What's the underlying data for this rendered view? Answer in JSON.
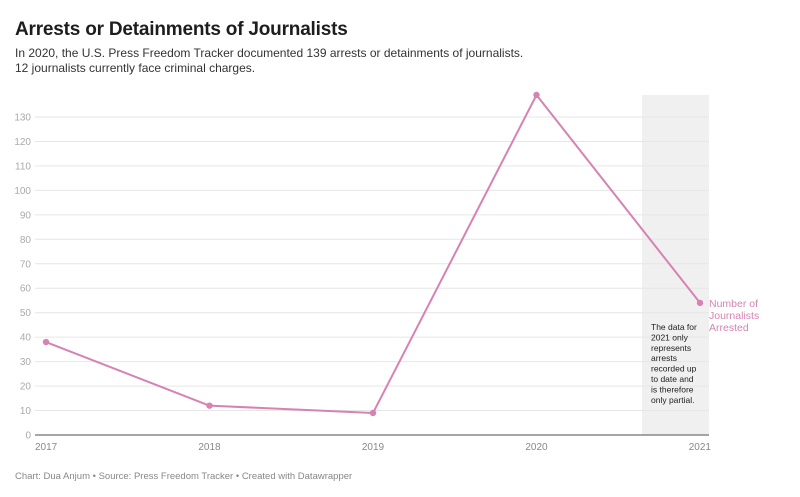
{
  "header": {
    "title": "Arrests or Detainments of Journalists",
    "subtitle_line1": "In 2020, the U.S. Press Freedom Tracker documented 139 arrests or detainments of journalists.",
    "subtitle_line2": "12 journalists currently face criminal charges."
  },
  "footer": {
    "text": "Chart: Dua Anjum • Source: Press Freedom Tracker • Created with Datawrapper"
  },
  "chart_data": {
    "type": "line",
    "title": "Arrests or Detainments of Journalists",
    "xlabel": "",
    "ylabel": "",
    "x": [
      "2017",
      "2018",
      "2019",
      "2020",
      "2021"
    ],
    "series": [
      {
        "name": "Number of Journalists Arrested",
        "values": [
          38,
          12,
          9,
          139,
          54
        ],
        "color": "#d683b3"
      }
    ],
    "series_label_lines": [
      "Number of",
      "Journalists",
      "Arrested"
    ],
    "ylim": [
      0,
      139
    ],
    "yticks": [
      0,
      10,
      20,
      30,
      40,
      50,
      60,
      70,
      80,
      90,
      100,
      110,
      120,
      130
    ],
    "grid": true,
    "highlight_range": {
      "from": "2020.7",
      "to": "2021",
      "color": "#f0f0f0"
    },
    "annotation": {
      "lines": [
        "The data for",
        "2021 only",
        "represents",
        "arrests",
        "recorded up",
        "to date and",
        "is therefore",
        "only partial."
      ]
    }
  }
}
